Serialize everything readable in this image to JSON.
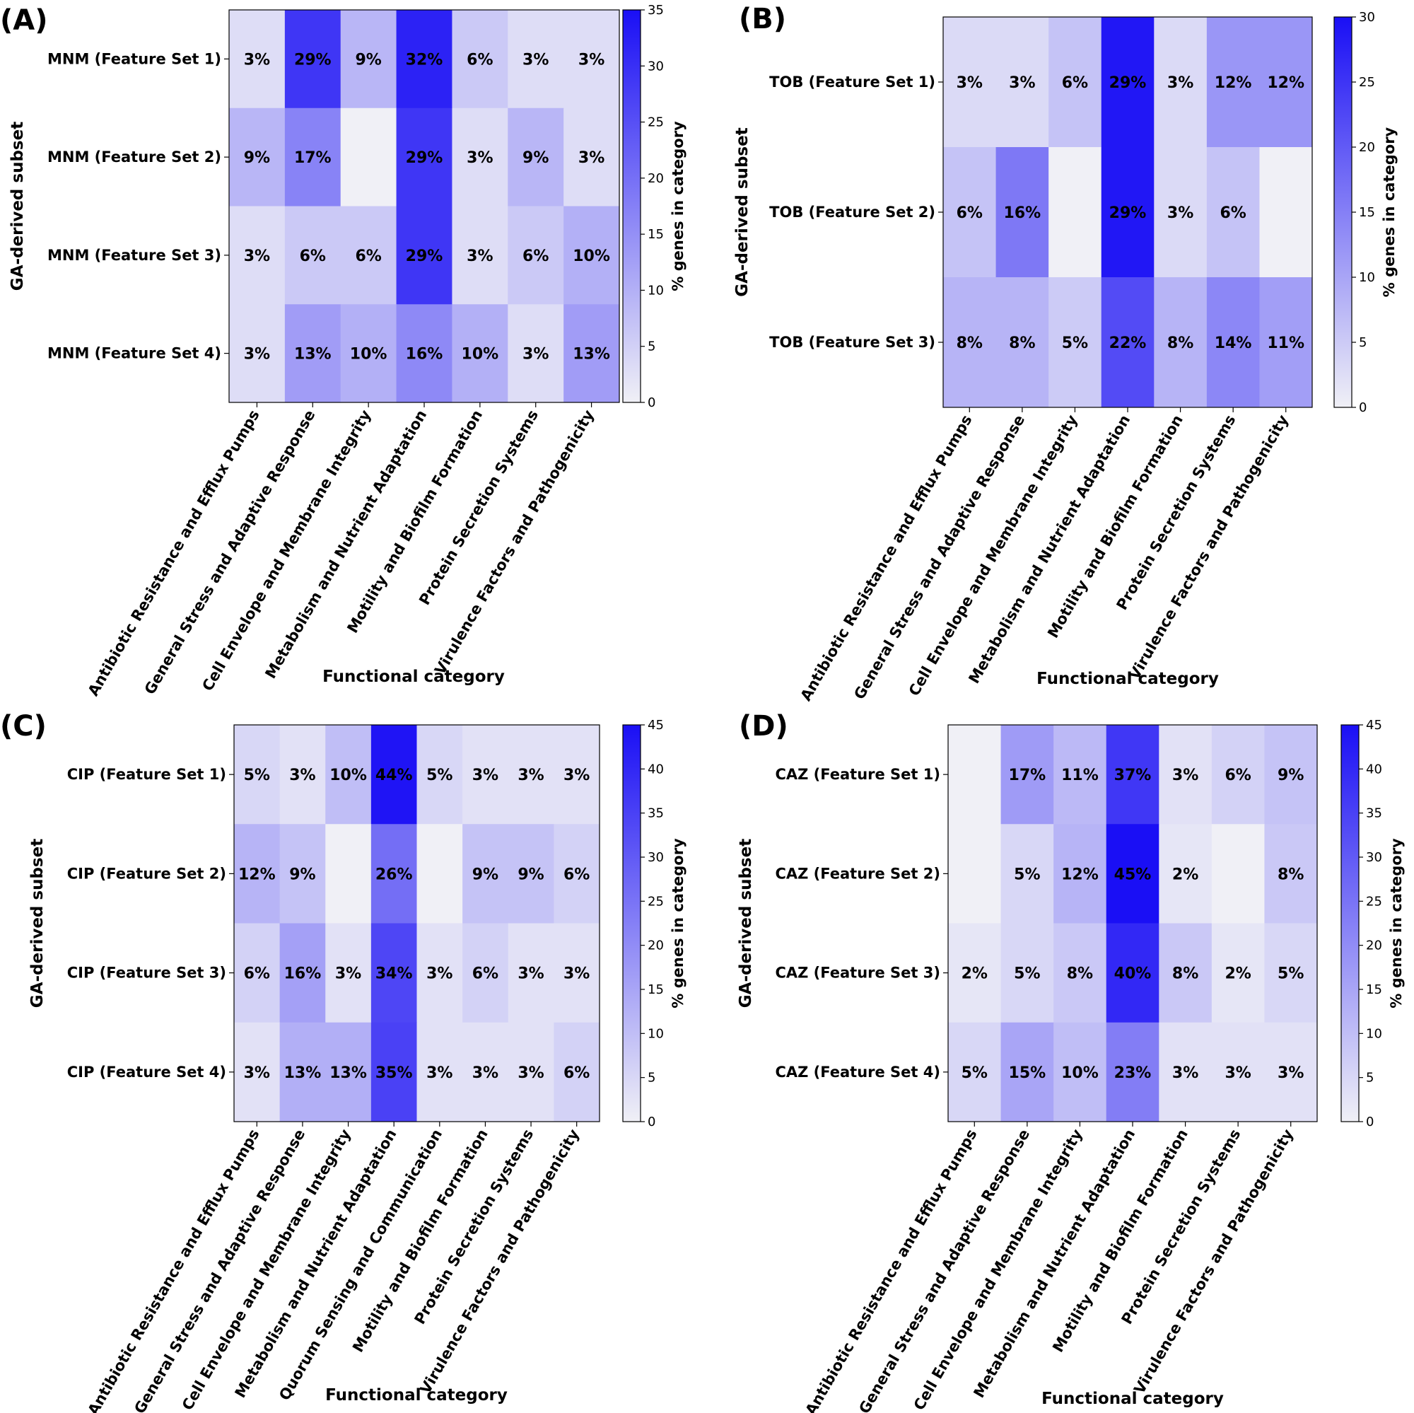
{
  "chart_data": [
    {
      "type": "heatmap",
      "panel_label": "(A)",
      "ylabel": "GA-derived subset",
      "xlabel": "Functional category",
      "colorbar_label": "% genes in category",
      "colorbar_range": [
        0,
        35
      ],
      "colorbar_ticks": [
        "0",
        "5",
        "10",
        "15",
        "20",
        "25",
        "30",
        "35"
      ],
      "rows": [
        "MNM (Feature Set 1)",
        "MNM (Feature Set 2)",
        "MNM (Feature Set 3)",
        "MNM (Feature Set 4)"
      ],
      "columns": [
        "Antibiotic Resistance and Efflux Pumps",
        "General Stress and Adaptive Response",
        "Cell Envelope and Membrane Integrity",
        "Metabolism and Nutrient Adaptation",
        "Motility and Biofilm Formation",
        "Protein Secretion Systems",
        "Virulence Factors and Pathogenicity"
      ],
      "values": [
        [
          3,
          29,
          9,
          32,
          6,
          3,
          3
        ],
        [
          9,
          17,
          0,
          29,
          3,
          9,
          3
        ],
        [
          3,
          6,
          6,
          29,
          3,
          6,
          10
        ],
        [
          3,
          13,
          10,
          16,
          10,
          3,
          13
        ]
      ],
      "cell_labels": [
        [
          "3%",
          "29%",
          "9%",
          "32%",
          "6%",
          "3%",
          "3%"
        ],
        [
          "9%",
          "17%",
          "",
          "29%",
          "3%",
          "9%",
          "3%"
        ],
        [
          "3%",
          "6%",
          "6%",
          "29%",
          "3%",
          "6%",
          "10%"
        ],
        [
          "3%",
          "13%",
          "10%",
          "16%",
          "10%",
          "3%",
          "13%"
        ]
      ]
    },
    {
      "type": "heatmap",
      "panel_label": "(B)",
      "ylabel": "GA-derived subset",
      "xlabel": "Functional category",
      "colorbar_label": "% genes in category",
      "colorbar_range": [
        0,
        30
      ],
      "colorbar_ticks": [
        "0",
        "5",
        "10",
        "15",
        "20",
        "25",
        "30"
      ],
      "rows": [
        "TOB (Feature Set 1)",
        "TOB (Feature Set 2)",
        "TOB (Feature Set 3)"
      ],
      "columns": [
        "Antibiotic Resistance and Efflux Pumps",
        "General Stress and Adaptive Response",
        "Cell Envelope and Membrane Integrity",
        "Metabolism and Nutrient Adaptation",
        "Motility and Biofilm Formation",
        "Protein Secretion Systems",
        "Virulence Factors and Pathogenicity"
      ],
      "values": [
        [
          3,
          3,
          6,
          29,
          3,
          12,
          12
        ],
        [
          6,
          16,
          0,
          29,
          3,
          6,
          0
        ],
        [
          8,
          8,
          5,
          22,
          8,
          14,
          11
        ]
      ],
      "cell_labels": [
        [
          "3%",
          "3%",
          "6%",
          "29%",
          "3%",
          "12%",
          "12%"
        ],
        [
          "6%",
          "16%",
          "",
          "29%",
          "3%",
          "6%",
          ""
        ],
        [
          "8%",
          "8%",
          "5%",
          "22%",
          "8%",
          "14%",
          "11%"
        ]
      ]
    },
    {
      "type": "heatmap",
      "panel_label": "(C)",
      "ylabel": "GA-derived subset",
      "xlabel": "Functional category",
      "colorbar_label": "% genes in category",
      "colorbar_range": [
        0,
        45
      ],
      "colorbar_ticks": [
        "0",
        "5",
        "10",
        "15",
        "20",
        "25",
        "30",
        "35",
        "40",
        "45"
      ],
      "rows": [
        "CIP (Feature Set 1)",
        "CIP (Feature Set 2)",
        "CIP (Feature Set 3)",
        "CIP (Feature Set 4)"
      ],
      "columns": [
        "Antibiotic Resistance and Efflux Pumps",
        "General Stress and Adaptive Response",
        "Cell Envelope and Membrane Integrity",
        "Metabolism and Nutrient Adaptation",
        "Quorum Sensing and Communication",
        "Motility and Biofilm Formation",
        "Protein Secretion Systems",
        "Virulence Factors and Pathogenicity"
      ],
      "values": [
        [
          5,
          3,
          10,
          44,
          5,
          3,
          3,
          3
        ],
        [
          12,
          9,
          0,
          26,
          0,
          9,
          9,
          6
        ],
        [
          6,
          16,
          3,
          34,
          3,
          6,
          3,
          3
        ],
        [
          3,
          13,
          13,
          35,
          3,
          3,
          3,
          6
        ]
      ],
      "cell_labels": [
        [
          "5%",
          "3%",
          "10%",
          "44%",
          "5%",
          "3%",
          "3%",
          "3%"
        ],
        [
          "12%",
          "9%",
          "",
          "26%",
          "",
          "9%",
          "9%",
          "6%"
        ],
        [
          "6%",
          "16%",
          "3%",
          "34%",
          "3%",
          "6%",
          "3%",
          "3%"
        ],
        [
          "3%",
          "13%",
          "13%",
          "35%",
          "3%",
          "3%",
          "3%",
          "6%"
        ]
      ]
    },
    {
      "type": "heatmap",
      "panel_label": "(D)",
      "ylabel": "GA-derived subset",
      "xlabel": "Functional category",
      "colorbar_label": "% genes in category",
      "colorbar_range": [
        0,
        45
      ],
      "colorbar_ticks": [
        "0",
        "5",
        "10",
        "15",
        "20",
        "25",
        "30",
        "35",
        "40",
        "45"
      ],
      "rows": [
        "CAZ (Feature Set 1)",
        "CAZ (Feature Set 2)",
        "CAZ (Feature Set 3)",
        "CAZ (Feature Set 4)"
      ],
      "columns": [
        "Antibiotic Resistance and Efflux Pumps",
        "General Stress and Adaptive Response",
        "Cell Envelope and Membrane Integrity",
        "Metabolism and Nutrient Adaptation",
        "Motility and Biofilm Formation",
        "Protein Secretion Systems",
        "Virulence Factors and Pathogenicity"
      ],
      "values": [
        [
          0,
          17,
          11,
          37,
          3,
          6,
          9
        ],
        [
          0,
          5,
          12,
          45,
          2,
          0,
          8
        ],
        [
          2,
          5,
          8,
          40,
          8,
          2,
          5
        ],
        [
          5,
          15,
          10,
          23,
          3,
          3,
          3
        ]
      ],
      "cell_labels": [
        [
          "",
          "17%",
          "11%",
          "37%",
          "3%",
          "6%",
          "9%"
        ],
        [
          "",
          "5%",
          "12%",
          "45%",
          "2%",
          "",
          "8%"
        ],
        [
          "2%",
          "5%",
          "8%",
          "40%",
          "8%",
          "2%",
          "5%"
        ],
        [
          "5%",
          "15%",
          "10%",
          "23%",
          "3%",
          "3%",
          "3%"
        ]
      ]
    }
  ],
  "colors": {
    "low": "#f0f0f6",
    "high": "#1a0ff5"
  }
}
